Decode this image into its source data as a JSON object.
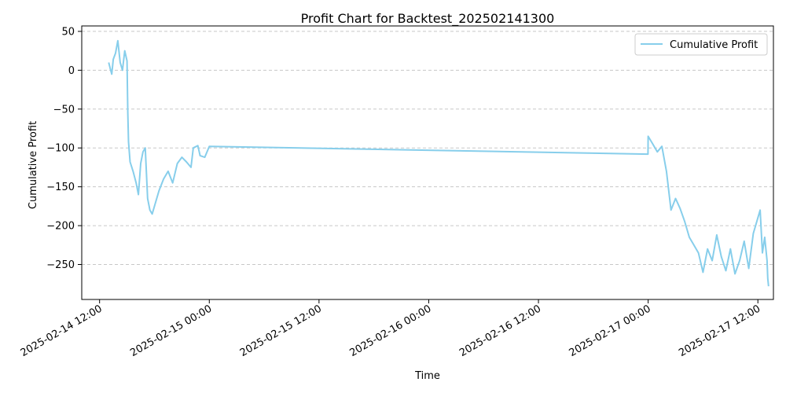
{
  "chart_data": {
    "type": "line",
    "title": "Profit Chart for Backtest_202502141300",
    "xlabel": "Time",
    "ylabel": "Cumulative Profit",
    "x_ticks": [
      "2025-02-14 12:00",
      "2025-02-15 00:00",
      "2025-02-15 12:00",
      "2025-02-16 00:00",
      "2025-02-16 12:00",
      "2025-02-17 00:00",
      "2025-02-17 12:00"
    ],
    "y_ticks": [
      50,
      0,
      -50,
      -100,
      -150,
      -200,
      -250
    ],
    "y_tick_labels": [
      "50",
      "0",
      "−50",
      "−100",
      "−150",
      "−200",
      "−250"
    ],
    "xlim": [
      "2025-02-14 10:03",
      "2025-02-17 13:42"
    ],
    "ylim": [
      -295,
      57
    ],
    "grid": "y-axis dashed",
    "legend_position": "top-right",
    "series": [
      {
        "name": "Cumulative Profit",
        "color": "#87CEEB",
        "points": [
          [
            "2025-02-14 13:00",
            10
          ],
          [
            "2025-02-14 13:10",
            2
          ],
          [
            "2025-02-14 13:20",
            -5
          ],
          [
            "2025-02-14 13:30",
            14
          ],
          [
            "2025-02-14 13:45",
            22
          ],
          [
            "2025-02-14 14:00",
            38
          ],
          [
            "2025-02-14 14:15",
            10
          ],
          [
            "2025-02-14 14:30",
            0
          ],
          [
            "2025-02-14 14:45",
            25
          ],
          [
            "2025-02-14 15:00",
            12
          ],
          [
            "2025-02-14 15:05",
            -55
          ],
          [
            "2025-02-14 15:10",
            -92
          ],
          [
            "2025-02-14 15:20",
            -118
          ],
          [
            "2025-02-14 15:40",
            -130
          ],
          [
            "2025-02-14 16:00",
            -145
          ],
          [
            "2025-02-14 16:15",
            -160
          ],
          [
            "2025-02-14 16:30",
            -120
          ],
          [
            "2025-02-14 16:45",
            -105
          ],
          [
            "2025-02-14 17:00",
            -100
          ],
          [
            "2025-02-14 17:15",
            -165
          ],
          [
            "2025-02-14 17:30",
            -180
          ],
          [
            "2025-02-14 17:45",
            -185
          ],
          [
            "2025-02-14 18:00",
            -175
          ],
          [
            "2025-02-14 18:30",
            -155
          ],
          [
            "2025-02-14 19:00",
            -140
          ],
          [
            "2025-02-14 19:30",
            -130
          ],
          [
            "2025-02-14 20:00",
            -145
          ],
          [
            "2025-02-14 20:30",
            -120
          ],
          [
            "2025-02-14 21:00",
            -112
          ],
          [
            "2025-02-14 21:30",
            -118
          ],
          [
            "2025-02-14 22:00",
            -125
          ],
          [
            "2025-02-14 22:15",
            -100
          ],
          [
            "2025-02-14 22:45",
            -97
          ],
          [
            "2025-02-14 23:00",
            -110
          ],
          [
            "2025-02-14 23:30",
            -112
          ],
          [
            "2025-02-15 00:00",
            -98
          ],
          [
            "2025-02-16 23:59",
            -108
          ],
          [
            "2025-02-17 00:00",
            -85
          ],
          [
            "2025-02-17 00:30",
            -95
          ],
          [
            "2025-02-17 01:00",
            -105
          ],
          [
            "2025-02-17 01:30",
            -98
          ],
          [
            "2025-02-17 02:00",
            -130
          ],
          [
            "2025-02-17 02:15",
            -155
          ],
          [
            "2025-02-17 02:30",
            -180
          ],
          [
            "2025-02-17 03:00",
            -165
          ],
          [
            "2025-02-17 03:30",
            -178
          ],
          [
            "2025-02-17 04:00",
            -195
          ],
          [
            "2025-02-17 04:30",
            -215
          ],
          [
            "2025-02-17 05:00",
            -225
          ],
          [
            "2025-02-17 05:30",
            -235
          ],
          [
            "2025-02-17 06:00",
            -260
          ],
          [
            "2025-02-17 06:30",
            -230
          ],
          [
            "2025-02-17 07:00",
            -245
          ],
          [
            "2025-02-17 07:30",
            -212
          ],
          [
            "2025-02-17 08:00",
            -240
          ],
          [
            "2025-02-17 08:30",
            -258
          ],
          [
            "2025-02-17 09:00",
            -230
          ],
          [
            "2025-02-17 09:30",
            -262
          ],
          [
            "2025-02-17 10:00",
            -245
          ],
          [
            "2025-02-17 10:30",
            -220
          ],
          [
            "2025-02-17 11:00",
            -255
          ],
          [
            "2025-02-17 11:30",
            -210
          ],
          [
            "2025-02-17 12:00",
            -190
          ],
          [
            "2025-02-17 12:15",
            -180
          ],
          [
            "2025-02-17 12:30",
            -235
          ],
          [
            "2025-02-17 12:45",
            -215
          ],
          [
            "2025-02-17 13:00",
            -245
          ],
          [
            "2025-02-17 13:05",
            -268
          ],
          [
            "2025-02-17 13:10",
            -278
          ]
        ]
      }
    ]
  }
}
